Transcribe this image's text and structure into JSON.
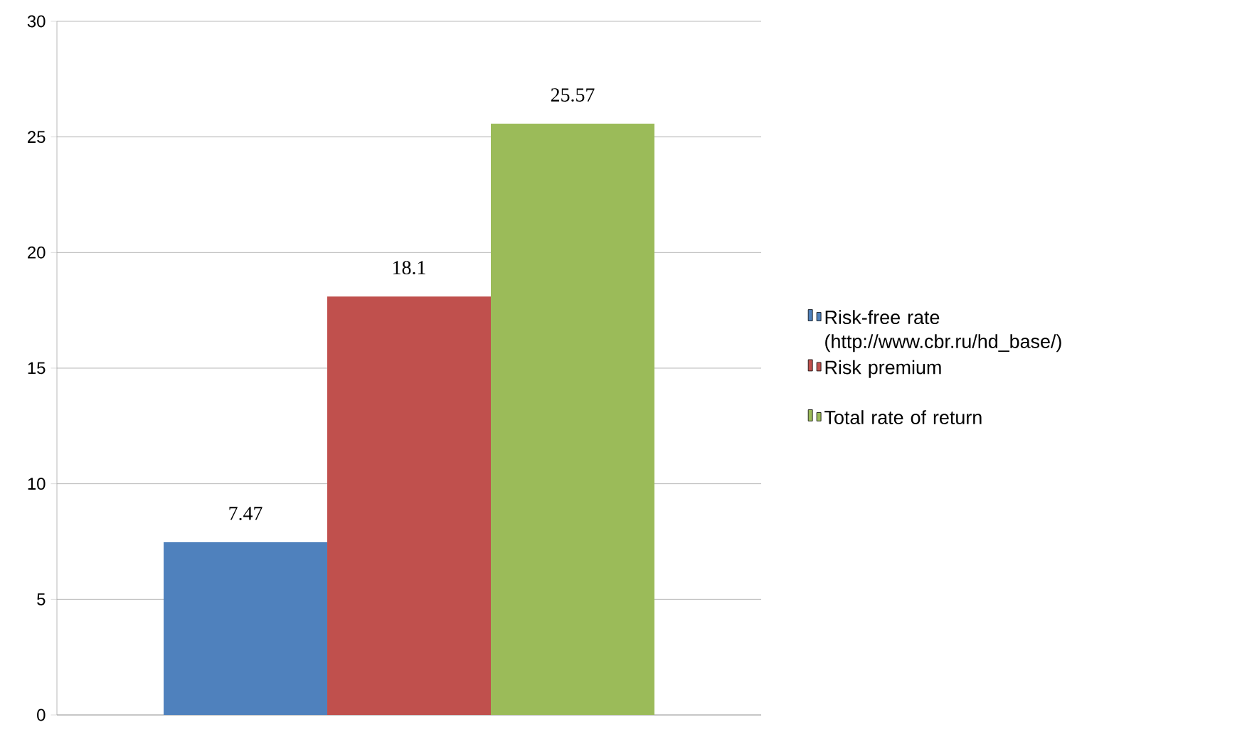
{
  "chart_data": {
    "type": "bar",
    "categories": [
      null
    ],
    "series": [
      {
        "name": "Risk-free rate (http://www.cbr.ru/hd_base/)",
        "color": "#4f81bd",
        "values": [
          7.47
        ]
      },
      {
        "name": "Risk premium",
        "color": "#c0504d",
        "values": [
          18.1
        ]
      },
      {
        "name": "Total rate of return",
        "color": "#9bbb59",
        "values": [
          25.57
        ]
      }
    ],
    "ylim": [
      0,
      30
    ],
    "yticks": [
      0,
      5,
      10,
      15,
      20,
      25,
      30
    ],
    "grid": "y",
    "legend": "right",
    "data_labels": true
  }
}
